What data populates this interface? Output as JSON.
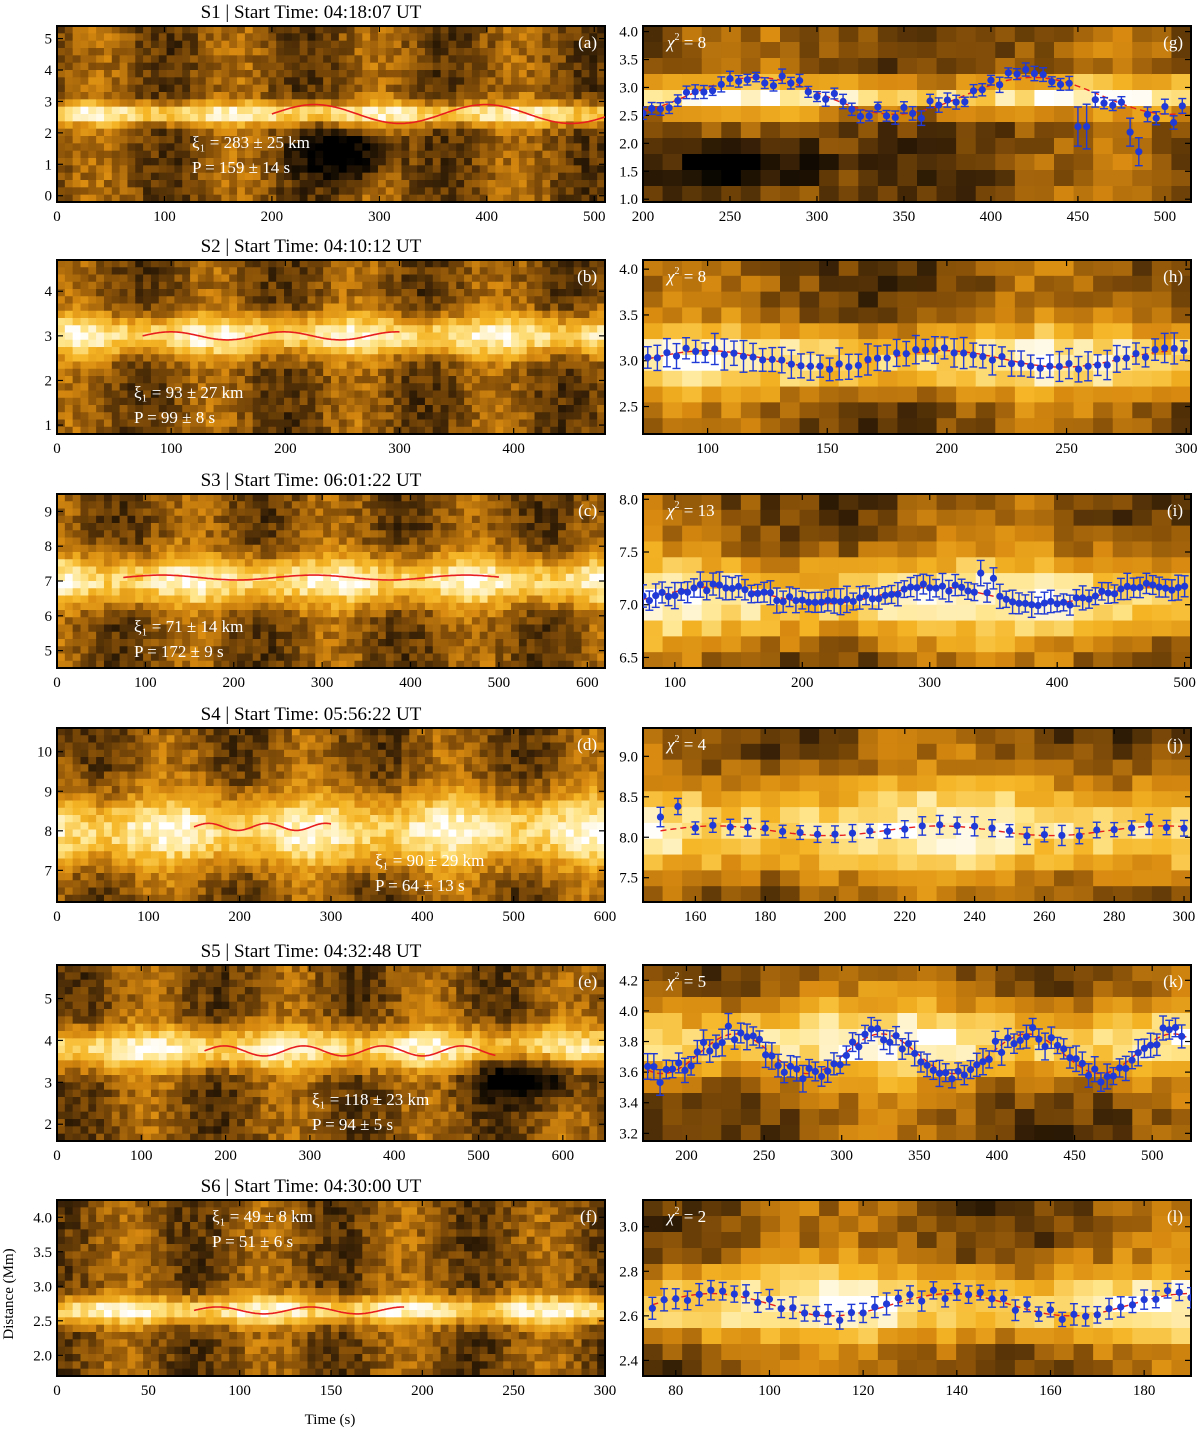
{
  "colors": {
    "colormap": [
      "#000000",
      "#3a2206",
      "#8a5208",
      "#d88a10",
      "#f5b525",
      "#ffe58a",
      "#ffffff"
    ],
    "fit_curve": "#e81e1e",
    "data_points": "#1f3ad6",
    "overlay_text": "#ffffff"
  },
  "axes": {
    "xlabel": "Time (s)",
    "ylabel": "Distance (Mm)"
  },
  "chart_data": [
    {
      "type": "heatmap",
      "id": "a",
      "panel_label": "(a)",
      "title": "S1 | Start Time: 04:18:07 UT",
      "xlim": [
        0,
        510
      ],
      "ylim": [
        -0.2,
        5.4
      ],
      "xticks": [
        0,
        100,
        200,
        300,
        400,
        500
      ],
      "yticks": [
        0,
        1,
        2,
        3,
        4,
        5
      ],
      "annotation_xi": "ξ₁ = 283 ± 25 km",
      "annotation_p": "P = 159 ± 14 s",
      "annotation_pos": "center-left",
      "fit": {
        "x_start": 200,
        "x_end": 510,
        "center": 2.6,
        "amplitude": 0.3,
        "period": 159
      },
      "structure": {
        "bright": [
          2.6,
          0.35
        ],
        "dark_spot": [
          270,
          1.3,
          40,
          0.8
        ]
      }
    },
    {
      "type": "heatmap",
      "id": "b",
      "panel_label": "(b)",
      "title": "S2 | Start Time: 04:10:12 UT",
      "xlim": [
        0,
        480
      ],
      "ylim": [
        0.8,
        4.7
      ],
      "xticks": [
        0,
        100,
        200,
        300,
        400
      ],
      "yticks": [
        1,
        2,
        3,
        4
      ],
      "annotation_xi": "ξ₁ = 93 ± 27 km",
      "annotation_p": "P = 99 ± 8 s",
      "annotation_pos": "bottom-left",
      "fit": {
        "x_start": 75,
        "x_end": 300,
        "center": 3.0,
        "amplitude": 0.09,
        "period": 99
      },
      "structure": {
        "bright": [
          3.0,
          0.45
        ],
        "dark_spot": null
      }
    },
    {
      "type": "heatmap",
      "id": "c",
      "panel_label": "(c)",
      "title": "S3 | Start Time: 06:01:22 UT",
      "xlim": [
        0,
        620
      ],
      "ylim": [
        4.5,
        9.5
      ],
      "xticks": [
        0,
        100,
        200,
        300,
        400,
        500,
        600
      ],
      "yticks": [
        5,
        6,
        7,
        8,
        9
      ],
      "annotation_xi": "ξ₁ = 71 ± 14 km",
      "annotation_p": "P = 172 ± 9 s",
      "annotation_pos": "bottom-left",
      "fit": {
        "x_start": 75,
        "x_end": 500,
        "center": 7.1,
        "amplitude": 0.07,
        "period": 172
      },
      "structure": {
        "bright": [
          7.0,
          0.7
        ],
        "dark_spot": null
      }
    },
    {
      "type": "heatmap",
      "id": "d",
      "panel_label": "(d)",
      "title": "S4 | Start Time: 05:56:22 UT",
      "xlim": [
        0,
        600
      ],
      "ylim": [
        6.2,
        10.6
      ],
      "xticks": [
        0,
        100,
        200,
        300,
        400,
        500,
        600
      ],
      "yticks": [
        7,
        8,
        9,
        10
      ],
      "annotation_xi": "ξ₁ = 90 ± 29 km",
      "annotation_p": "P = 64 ± 13 s",
      "annotation_pos": "bottom-right",
      "fit": {
        "x_start": 150,
        "x_end": 300,
        "center": 8.1,
        "amplitude": 0.09,
        "period": 64
      },
      "structure": {
        "bright": [
          8.0,
          0.9
        ],
        "dark_spot": null
      }
    },
    {
      "type": "heatmap",
      "id": "e",
      "panel_label": "(e)",
      "title": "S5 | Start Time: 04:32:48 UT",
      "xlim": [
        0,
        650
      ],
      "ylim": [
        1.6,
        5.8
      ],
      "xticks": [
        0,
        100,
        200,
        300,
        400,
        500,
        600
      ],
      "yticks": [
        2,
        3,
        4,
        5
      ],
      "annotation_xi": "ξ₁ = 118 ± 23 km",
      "annotation_p": "P = 94 ± 5 s",
      "annotation_pos": "bottom-center",
      "fit": {
        "x_start": 175,
        "x_end": 520,
        "center": 3.75,
        "amplitude": 0.12,
        "period": 94
      },
      "structure": {
        "bright": [
          3.8,
          0.5
        ],
        "dark_spot": [
          560,
          3.2,
          70,
          0.6
        ]
      }
    },
    {
      "type": "heatmap",
      "id": "f",
      "panel_label": "(f)",
      "title": "S6 | Start Time: 04:30:00 UT",
      "xlim": [
        0,
        300
      ],
      "ylim": [
        1.7,
        4.25
      ],
      "xticks": [
        0,
        50,
        100,
        150,
        200,
        250,
        300
      ],
      "yticks": [
        2.0,
        2.5,
        3.0,
        3.5,
        4.0
      ],
      "annotation_xi": "ξ₁ = 49 ± 8 km",
      "annotation_p": "P = 51 ± 6 s",
      "annotation_pos": "top-left",
      "fit": {
        "x_start": 75,
        "x_end": 190,
        "center": 2.65,
        "amplitude": 0.05,
        "period": 51
      },
      "structure": {
        "bright": [
          2.65,
          0.2
        ],
        "dark_spot": null
      }
    },
    {
      "type": "scatter",
      "id": "g",
      "panel_label": "(g)",
      "chi2": "= 8",
      "xlim": [
        200,
        515
      ],
      "ylim": [
        0.95,
        4.1
      ],
      "xticks": [
        200,
        250,
        300,
        350,
        400,
        450,
        500
      ],
      "yticks": [
        1.0,
        1.5,
        2.0,
        2.5,
        3.0,
        3.5,
        4.0
      ],
      "points": {
        "x_start": 200,
        "x_end": 512,
        "step": 5,
        "center": 2.85,
        "amplitude": 0.33,
        "period": 159,
        "phase": -1.0,
        "err": 0.11
      },
      "outliers": [
        [
          450,
          2.3,
          0.35
        ],
        [
          455,
          2.3,
          0.4
        ],
        [
          480,
          2.2,
          0.25
        ],
        [
          485,
          1.85,
          0.25
        ]
      ],
      "structure": {
        "bright": [
          2.85,
          0.3
        ],
        "dark_spot": [
          260,
          1.6,
          45,
          0.5
        ]
      }
    },
    {
      "type": "scatter",
      "id": "h",
      "panel_label": "(h)",
      "chi2": "= 8",
      "xlim": [
        73,
        302
      ],
      "ylim": [
        2.2,
        4.1
      ],
      "xticks": [
        100,
        150,
        200,
        250,
        300
      ],
      "yticks": [
        2.5,
        3.0,
        3.5,
        4.0
      ],
      "points": {
        "x_start": 75,
        "x_end": 300,
        "step": 4,
        "center": 3.02,
        "amplitude": 0.09,
        "period": 99,
        "phase": 0.0,
        "err": 0.14
      },
      "outliers": [],
      "structure": {
        "bright": [
          3.0,
          0.35
        ],
        "dark_spot": null
      }
    },
    {
      "type": "scatter",
      "id": "i",
      "panel_label": "(i)",
      "chi2": "= 13",
      "xlim": [
        75,
        505
      ],
      "ylim": [
        6.4,
        8.05
      ],
      "xticks": [
        100,
        200,
        300,
        400,
        500
      ],
      "yticks": [
        6.5,
        7.0,
        7.5,
        8.0
      ],
      "points": {
        "x_start": 75,
        "x_end": 500,
        "step": 5,
        "center": 7.09,
        "amplitude": 0.08,
        "period": 172,
        "phase": -0.5,
        "err": 0.1
      },
      "outliers": [
        [
          340,
          7.3,
          0.12
        ],
        [
          350,
          7.25,
          0.1
        ]
      ],
      "structure": {
        "bright": [
          7.05,
          0.4
        ],
        "dark_spot": null
      }
    },
    {
      "type": "scatter",
      "id": "j",
      "panel_label": "(j)",
      "chi2": "= 4",
      "xlim": [
        145,
        302
      ],
      "ylim": [
        7.2,
        9.35
      ],
      "xticks": [
        160,
        180,
        200,
        220,
        240,
        260,
        280,
        300
      ],
      "yticks": [
        7.5,
        8.0,
        8.5,
        9.0
      ],
      "points": {
        "x_start": 150,
        "x_end": 300,
        "step": 5,
        "center": 8.08,
        "amplitude": 0.06,
        "period": 64,
        "phase": 0.0,
        "err": 0.1
      },
      "outliers": [
        [
          150,
          8.25,
          0.12
        ],
        [
          155,
          8.38,
          0.1
        ]
      ],
      "structure": {
        "bright": [
          8.1,
          0.6
        ],
        "dark_spot": null
      }
    },
    {
      "type": "scatter",
      "id": "k",
      "panel_label": "(k)",
      "chi2": "= 5",
      "xlim": [
        172,
        525
      ],
      "ylim": [
        3.15,
        4.3
      ],
      "xticks": [
        200,
        250,
        300,
        350,
        400,
        450,
        500
      ],
      "yticks": [
        3.2,
        3.4,
        3.6,
        3.8,
        4.0,
        4.2
      ],
      "points": {
        "x_start": 175,
        "x_end": 522,
        "step": 4,
        "center": 3.72,
        "amplitude": 0.13,
        "period": 94,
        "phase": -2.2,
        "err": 0.07
      },
      "outliers": [],
      "structure": {
        "bright": [
          3.8,
          0.25
        ],
        "dark_spot": null
      }
    },
    {
      "type": "scatter",
      "id": "l",
      "panel_label": "(l)",
      "chi2": "= 2",
      "xlim": [
        73,
        190
      ],
      "ylim": [
        2.33,
        3.12
      ],
      "xticks": [
        80,
        100,
        120,
        140,
        160,
        180
      ],
      "yticks": [
        2.4,
        2.6,
        2.8,
        3.0
      ],
      "points": {
        "x_start": 75,
        "x_end": 190,
        "step": 2.5,
        "center": 2.65,
        "amplitude": 0.05,
        "period": 51,
        "phase": 0.0,
        "err": 0.04
      },
      "outliers": [],
      "structure": {
        "bright": [
          2.65,
          0.17
        ],
        "dark_spot": null
      }
    }
  ]
}
